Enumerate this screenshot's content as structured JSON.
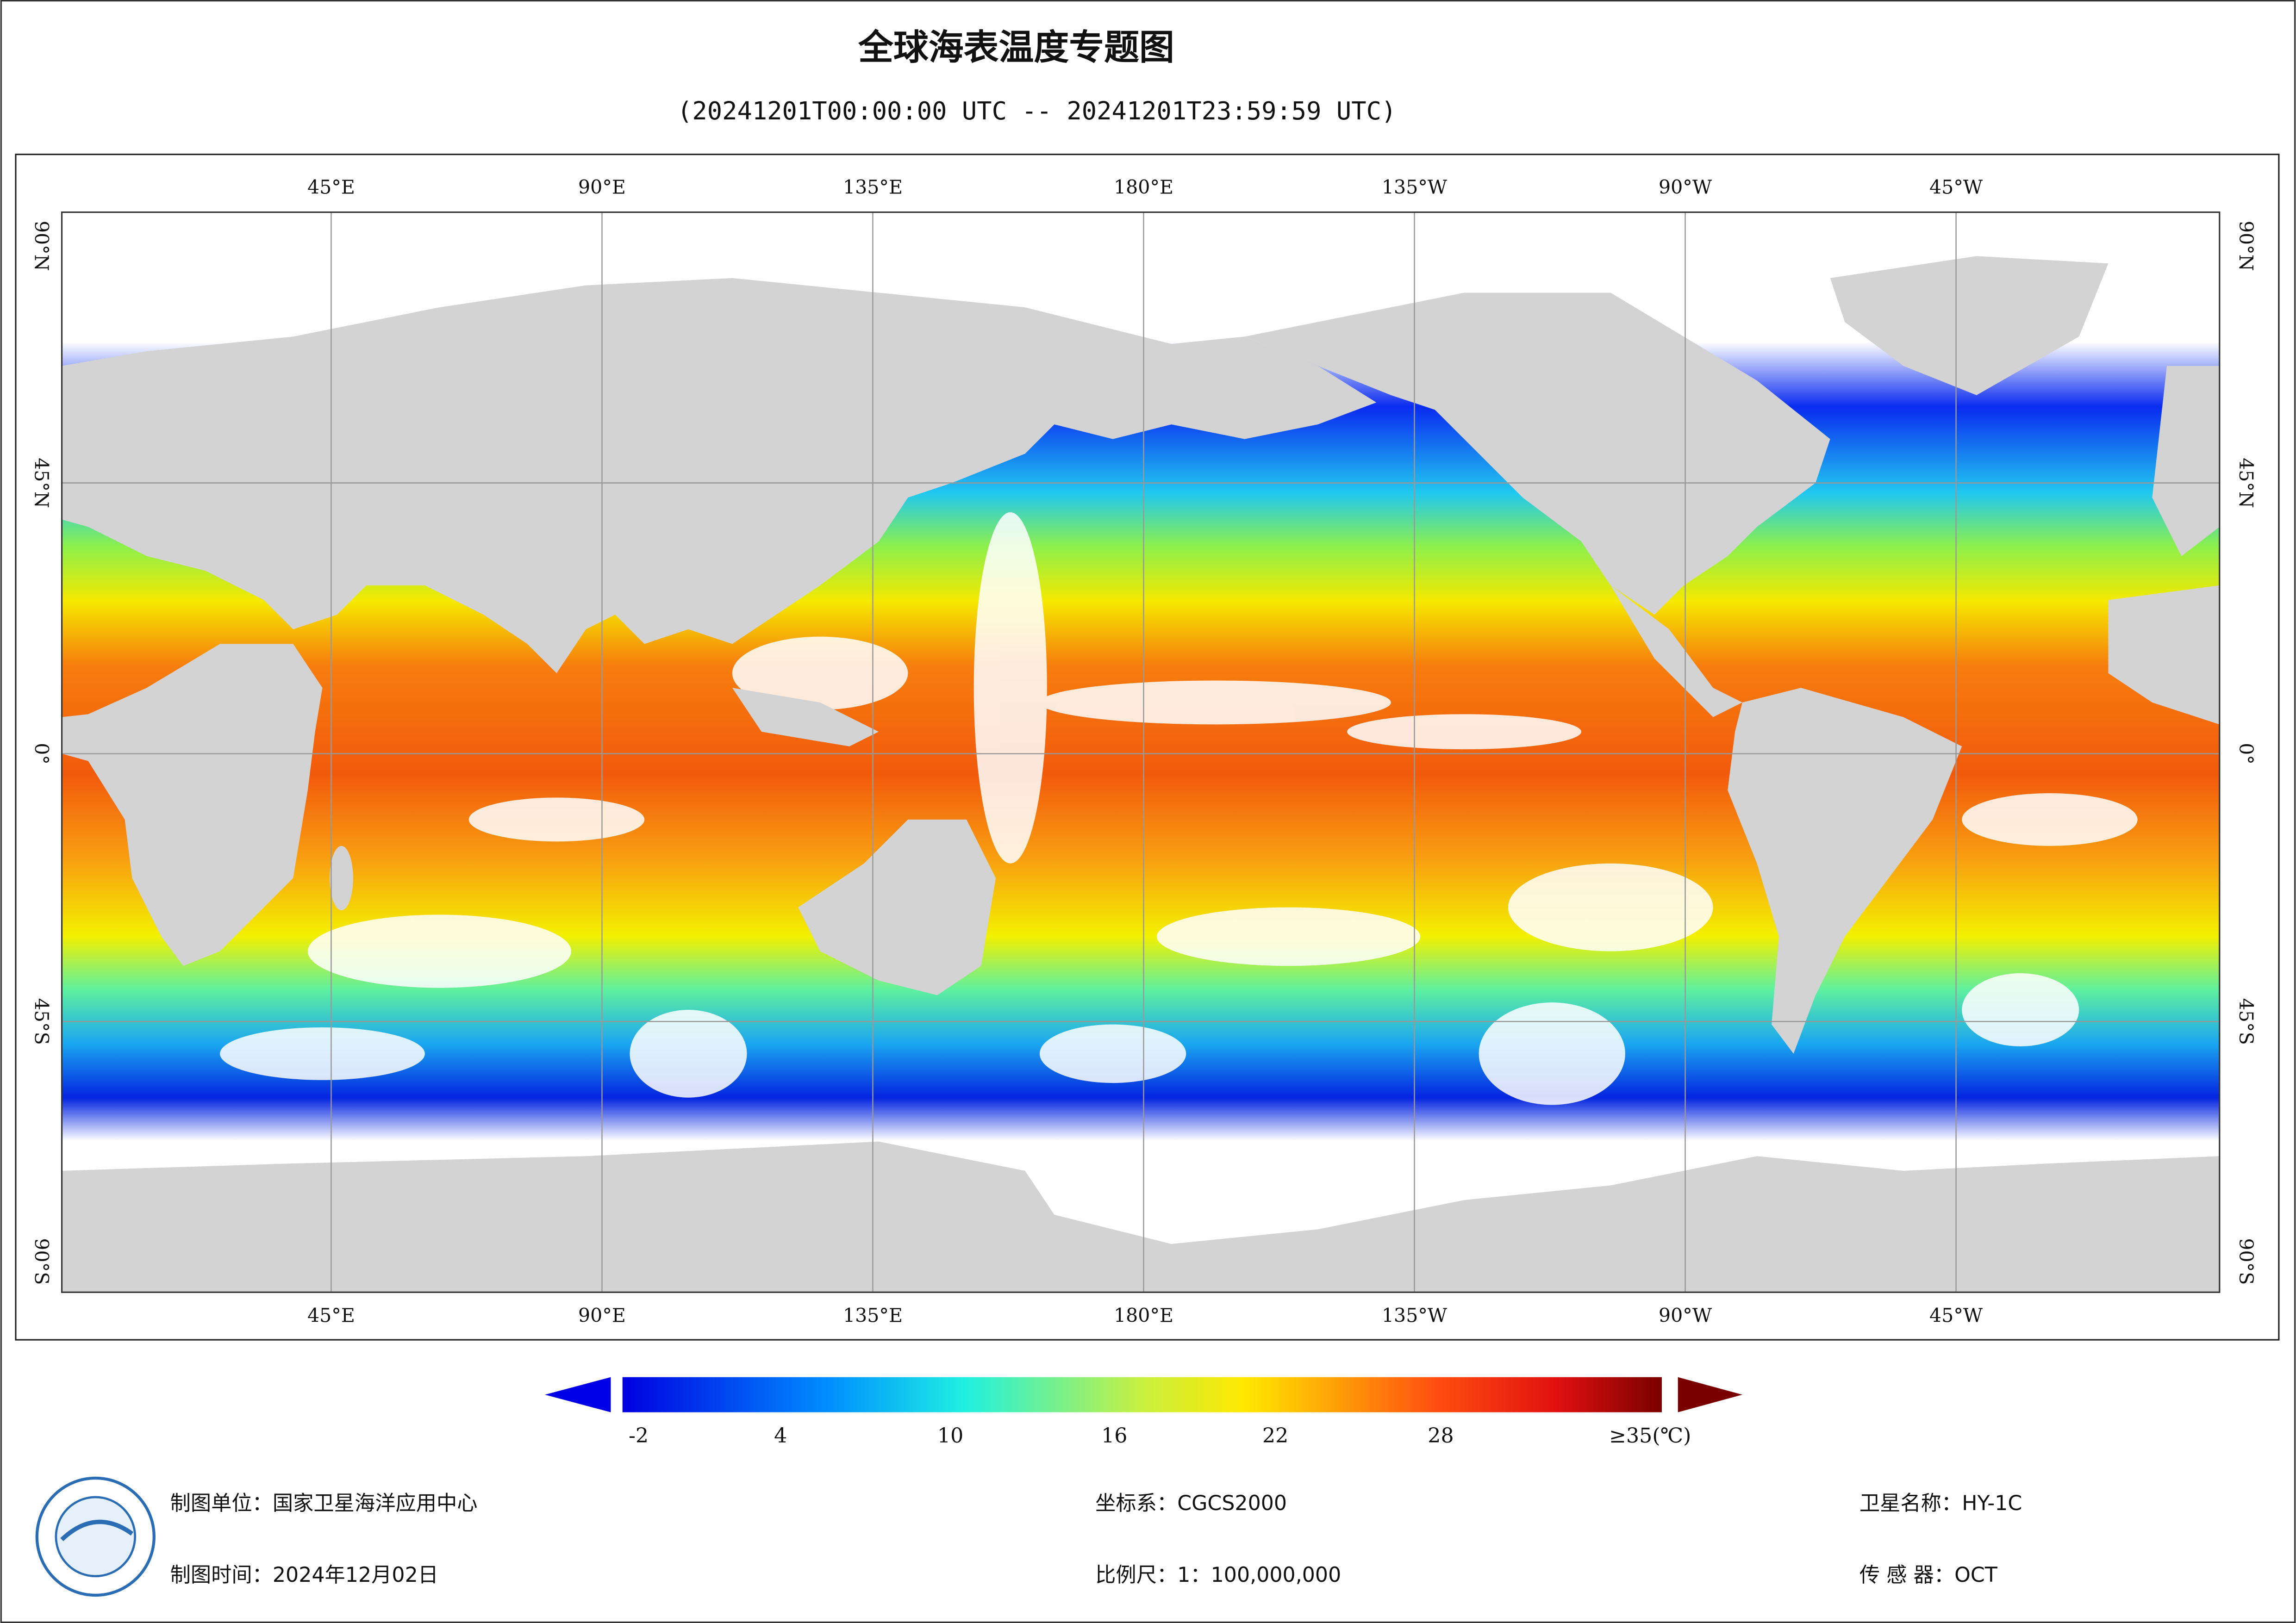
{
  "header": {
    "title": "全球海表温度专题图",
    "subtitle": "(20241201T00:00:00 UTC -- 20241201T23:59:59 UTC)"
  },
  "map": {
    "lon_labels": [
      "45°E",
      "90°E",
      "135°E",
      "180°E",
      "135°W",
      "90°W",
      "45°W"
    ],
    "lat_labels": [
      "90°N",
      "45°N",
      "0°",
      "45°S",
      "90°S"
    ]
  },
  "colorbar": {
    "ticks": [
      "-2",
      "4",
      "10",
      "16",
      "22",
      "28",
      "≥35(℃)"
    ]
  },
  "footer": {
    "producer": "制图单位：国家卫星海洋应用中心",
    "time": "制图时间：2024年12月02日",
    "crs": "坐标系：CGCS2000",
    "scale": "比例尺：1：100,000,000",
    "satellite": "卫星名称：HY-1C",
    "sensor": "传 感 器：OCT"
  }
}
